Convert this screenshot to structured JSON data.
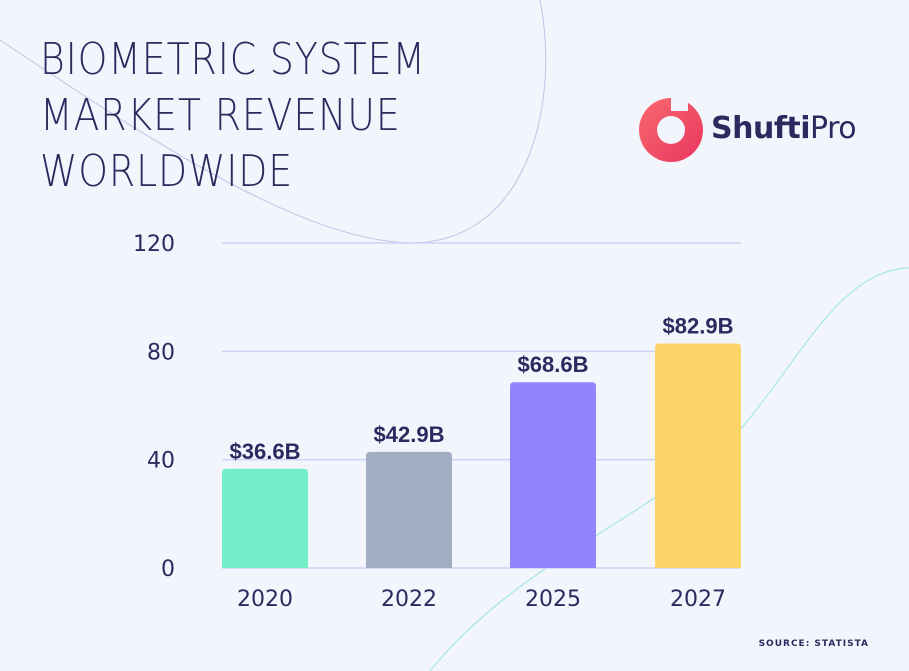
{
  "title_lines": [
    "BIOMETRIC SYSTEM",
    "MARKET REVENUE",
    "WORLDWIDE"
  ],
  "brand": {
    "word1": "Shufti",
    "word2": "Pro",
    "logo_color": "#f0506e"
  },
  "source": "SOURCE: STATISTA",
  "chart_data": {
    "type": "bar",
    "title": "BIOMETRIC SYSTEM MARKET REVENUE WORLDWIDE",
    "xlabel": "",
    "ylabel": "",
    "categories": [
      "2020",
      "2022",
      "2025",
      "2027"
    ],
    "values": [
      36.6,
      42.9,
      68.6,
      82.9
    ],
    "data_labels": [
      "$36.6B",
      "$42.9B",
      "$68.6B",
      "$82.9B"
    ],
    "bar_colors": [
      "#72efc8",
      "#a2adc1",
      "#9284fe",
      "#fbd46a"
    ],
    "ylim": [
      0,
      120
    ],
    "yticks": [
      0,
      40,
      80,
      120
    ],
    "ytick_labels": [
      "0",
      "40",
      "80",
      "120"
    ],
    "grid": true,
    "legend": "none"
  }
}
